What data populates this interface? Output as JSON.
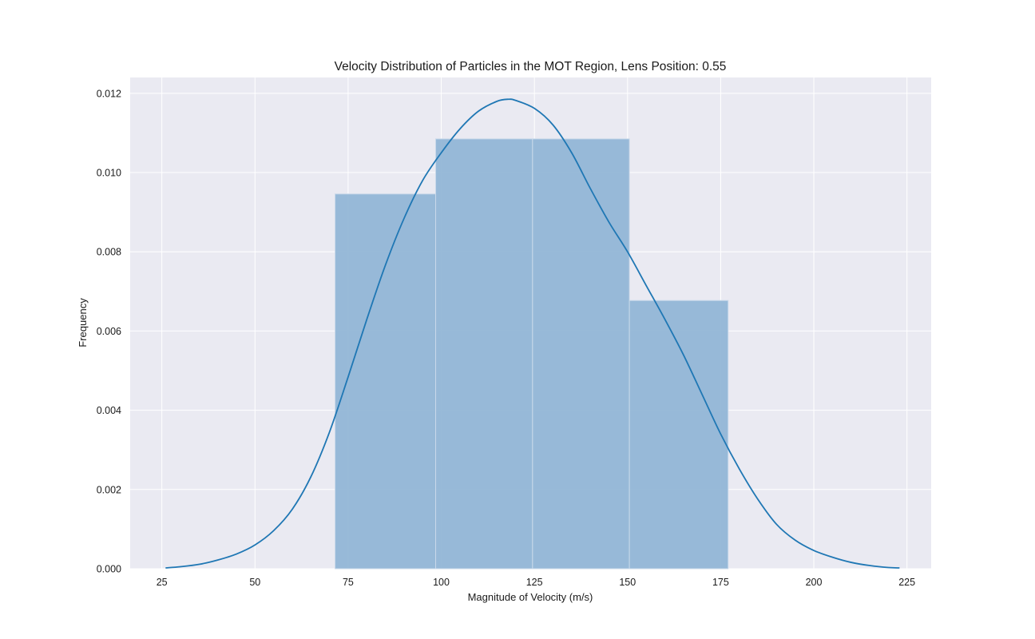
{
  "chart_data": {
    "type": "bar",
    "title": "Velocity Distribution of Particles in the MOT Region, Lens Position: 0.55",
    "xlabel": "Magnitude of Velocity (m/s)",
    "ylabel": "Frequency",
    "xlim": [
      16.5,
      231.5
    ],
    "ylim": [
      0,
      0.0124
    ],
    "xticks": [
      25,
      50,
      75,
      100,
      125,
      150,
      175,
      200,
      225
    ],
    "yticks": [
      0.0,
      0.002,
      0.004,
      0.006,
      0.008,
      0.01,
      0.012
    ],
    "ytick_labels": [
      "0.000",
      "0.002",
      "0.004",
      "0.006",
      "0.008",
      "0.010",
      "0.012"
    ],
    "grid": true,
    "histogram": {
      "bins": [
        {
          "x0": 71.5,
          "x1": 98.5,
          "value": 0.00946
        },
        {
          "x0": 98.5,
          "x1": 124.5,
          "value": 0.01085
        },
        {
          "x0": 124.5,
          "x1": 150.5,
          "value": 0.01085
        },
        {
          "x0": 150.5,
          "x1": 177.0,
          "value": 0.00677
        }
      ],
      "color": "#92b6d6"
    },
    "kde": {
      "color": "#1f77b4",
      "points": [
        [
          26,
          2e-05
        ],
        [
          30,
          5e-05
        ],
        [
          35,
          0.00011
        ],
        [
          40,
          0.00022
        ],
        [
          45,
          0.00037
        ],
        [
          50,
          0.0006
        ],
        [
          55,
          0.00096
        ],
        [
          60,
          0.0015
        ],
        [
          65,
          0.00232
        ],
        [
          70,
          0.00345
        ],
        [
          75,
          0.00484
        ],
        [
          80,
          0.00629
        ],
        [
          85,
          0.00766
        ],
        [
          90,
          0.00884
        ],
        [
          95,
          0.0098
        ],
        [
          100,
          0.0105
        ],
        [
          105,
          0.0111
        ],
        [
          110,
          0.01155
        ],
        [
          115,
          0.0118
        ],
        [
          118,
          0.01185
        ],
        [
          120,
          0.01182
        ],
        [
          125,
          0.01162
        ],
        [
          130,
          0.0112
        ],
        [
          135,
          0.0105
        ],
        [
          140,
          0.0096
        ],
        [
          145,
          0.00875
        ],
        [
          150,
          0.008
        ],
        [
          155,
          0.00715
        ],
        [
          160,
          0.0063
        ],
        [
          165,
          0.0054
        ],
        [
          170,
          0.0044
        ],
        [
          175,
          0.0034
        ],
        [
          180,
          0.00252
        ],
        [
          185,
          0.00175
        ],
        [
          190,
          0.00112
        ],
        [
          195,
          0.00072
        ],
        [
          200,
          0.00046
        ],
        [
          205,
          0.00029
        ],
        [
          210,
          0.00016
        ],
        [
          215,
          8e-05
        ],
        [
          220,
          3e-05
        ],
        [
          223,
          2e-05
        ]
      ]
    }
  }
}
